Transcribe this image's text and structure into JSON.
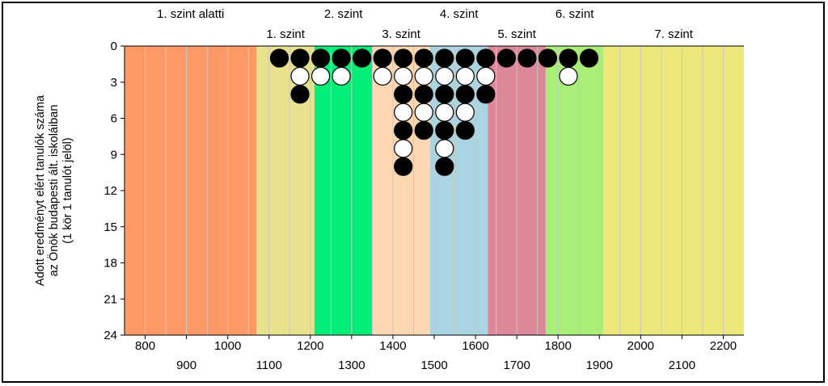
{
  "chart_data": {
    "type": "scatter",
    "ylabel_lines": [
      "Adott eredményt elért tanulók száma",
      "az Önök budapesti ált. iskoláiban",
      "(1 kör 1 tanulót jelöl)"
    ],
    "xlim": [
      750,
      2250
    ],
    "ylim": [
      0,
      24
    ],
    "y_inverted": true,
    "y_ticks": [
      "0",
      "3",
      "6",
      "9",
      "12",
      "15",
      "18",
      "21",
      "24"
    ],
    "x_ticks_row1": [
      "800",
      "1000",
      "1200",
      "1400",
      "1600",
      "1800",
      "2000",
      "2200"
    ],
    "x_ticks_row2": [
      "900",
      "1100",
      "1300",
      "1500",
      "1700",
      "1900",
      "2100"
    ],
    "bands": [
      {
        "label": "1. szint alatti",
        "from": 750,
        "to": 1070,
        "color": "#ff9966",
        "row": 1
      },
      {
        "label": "1. szint",
        "from": 1070,
        "to": 1210,
        "color": "#e9e28c",
        "row": 2
      },
      {
        "label": "2. szint",
        "from": 1210,
        "to": 1350,
        "color": "#00ee77",
        "row": 1
      },
      {
        "label": "3. szint",
        "from": 1350,
        "to": 1490,
        "color": "#ffd7b0",
        "row": 2
      },
      {
        "label": "4. szint",
        "from": 1490,
        "to": 1630,
        "color": "#a9d4e2",
        "row": 1
      },
      {
        "label": "5. szint",
        "from": 1630,
        "to": 1770,
        "color": "#db8899",
        "row": 2
      },
      {
        "label": "6. szint",
        "from": 1770,
        "to": 1910,
        "color": "#a9ee77",
        "row": 1
      },
      {
        "label": "7. szint",
        "from": 1910,
        "to": 2250,
        "color": "#ede87a",
        "row": 2
      }
    ],
    "columns": [
      {
        "x": 1125,
        "count": 1
      },
      {
        "x": 1175,
        "count": 3
      },
      {
        "x": 1225,
        "count": 2
      },
      {
        "x": 1275,
        "count": 2
      },
      {
        "x": 1325,
        "count": 1
      },
      {
        "x": 1375,
        "count": 2
      },
      {
        "x": 1425,
        "count": 7
      },
      {
        "x": 1475,
        "count": 5
      },
      {
        "x": 1525,
        "count": 7
      },
      {
        "x": 1575,
        "count": 5
      },
      {
        "x": 1625,
        "count": 3
      },
      {
        "x": 1675,
        "count": 1
      },
      {
        "x": 1725,
        "count": 1
      },
      {
        "x": 1775,
        "count": 1
      },
      {
        "x": 1825,
        "count": 2
      },
      {
        "x": 1875,
        "count": 1
      }
    ],
    "marker_colors": {
      "odd": "#000000",
      "even": "#ffffff"
    },
    "gridline_color": "#c8c8c8"
  }
}
